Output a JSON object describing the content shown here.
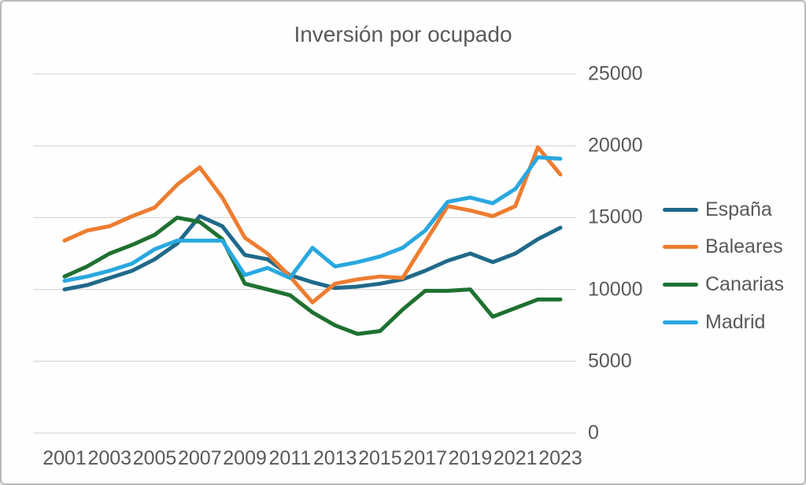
{
  "chart_data": {
    "type": "line",
    "title": "Inversión por ocupado",
    "xlabel": "",
    "ylabel": "",
    "x": [
      2001,
      2002,
      2003,
      2004,
      2005,
      2006,
      2007,
      2008,
      2009,
      2010,
      2011,
      2012,
      2013,
      2014,
      2015,
      2016,
      2017,
      2018,
      2019,
      2020,
      2021,
      2022,
      2023
    ],
    "x_tick_labels": [
      "2001",
      "2003",
      "2005",
      "2007",
      "2009",
      "2011",
      "2013",
      "2015",
      "2017",
      "2019",
      "2021",
      "2023"
    ],
    "y_ticks": [
      0,
      5000,
      10000,
      15000,
      20000,
      25000
    ],
    "ylim": [
      0,
      25000
    ],
    "grid": true,
    "legend_position": "right",
    "colors": {
      "text": "#595959",
      "gridline": "#D9D9D9",
      "background": "#FEFEFE",
      "border": "#B9B9B9"
    },
    "series": [
      {
        "name": "España",
        "color": "#20698A",
        "values": [
          10000,
          10300,
          10800,
          11300,
          12100,
          13200,
          15100,
          14400,
          12400,
          12100,
          11000,
          10500,
          10100,
          10200,
          10400,
          10700,
          11300,
          12000,
          12500,
          11900,
          12500,
          13500,
          14300
        ]
      },
      {
        "name": "Baleares",
        "color": "#ED7D31",
        "values": [
          13400,
          14100,
          14400,
          15100,
          15700,
          17300,
          18500,
          16400,
          13600,
          12500,
          10900,
          9100,
          10400,
          10700,
          10900,
          10800,
          13300,
          15800,
          15500,
          15100,
          15800,
          19900,
          18000
        ]
      },
      {
        "name": "Canarias",
        "color": "#1E7130",
        "values": [
          10900,
          11600,
          12500,
          13100,
          13800,
          15000,
          14700,
          13500,
          10400,
          10000,
          9600,
          8400,
          7500,
          6900,
          7100,
          8600,
          9900,
          9900,
          10000,
          8100,
          8700,
          9300,
          9300
        ]
      },
      {
        "name": "Madrid",
        "color": "#29A8E0",
        "values": [
          10600,
          10900,
          11300,
          11800,
          12800,
          13400,
          13400,
          13400,
          11000,
          11500,
          10800,
          12900,
          11600,
          11900,
          12300,
          12900,
          14100,
          16100,
          16400,
          16000,
          17000,
          19200,
          19100
        ]
      }
    ]
  }
}
